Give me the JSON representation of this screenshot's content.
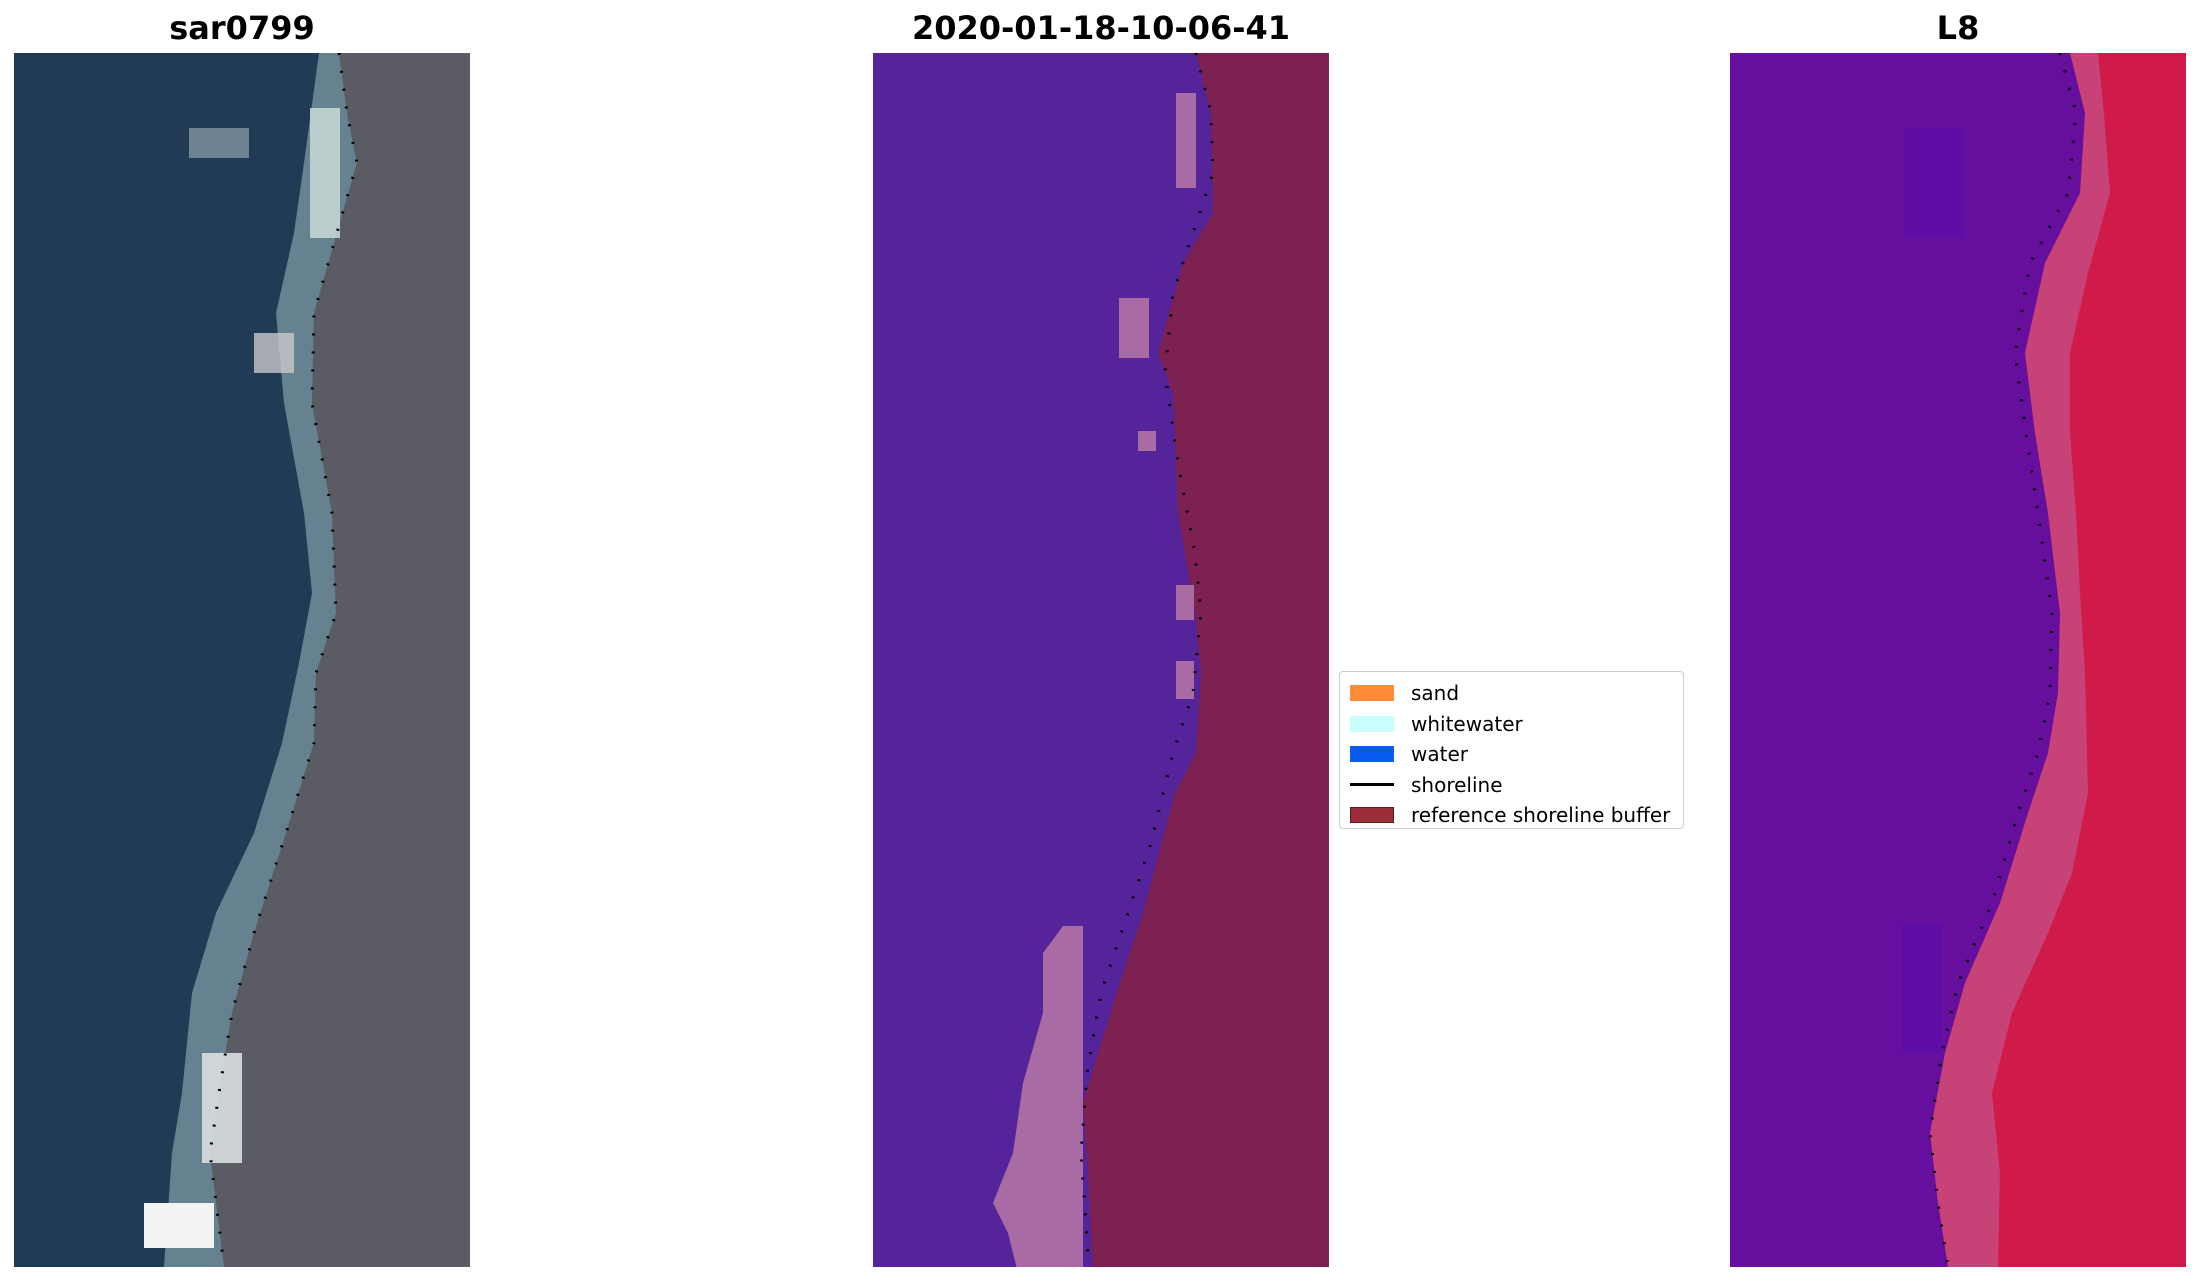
{
  "panels": [
    {
      "title": "sar0799"
    },
    {
      "title": "2020-01-18-10-06-41"
    },
    {
      "title": "L8"
    }
  ],
  "legend": {
    "items": [
      {
        "label": "sand",
        "color": "#ff8c3a",
        "kind": "patch"
      },
      {
        "label": "whitewater",
        "color": "#c8fffd",
        "kind": "patch"
      },
      {
        "label": "water",
        "color": "#0a5cf0",
        "kind": "patch"
      },
      {
        "label": "shoreline",
        "color": "#000000",
        "kind": "line"
      },
      {
        "label": "reference shoreline buffer",
        "color": "#9a2f3a",
        "kind": "patch"
      }
    ]
  },
  "colors": {
    "sea_rgb": "#213a55",
    "land_rgb": "#5b5b64",
    "surf_rgb": "#c7d5d2",
    "water_class": "#55249a",
    "buffer_class": "#7c2151",
    "pink_class": "#a96ba4",
    "nir_water": "#660f9e",
    "nir_land": "#d01a4a"
  }
}
